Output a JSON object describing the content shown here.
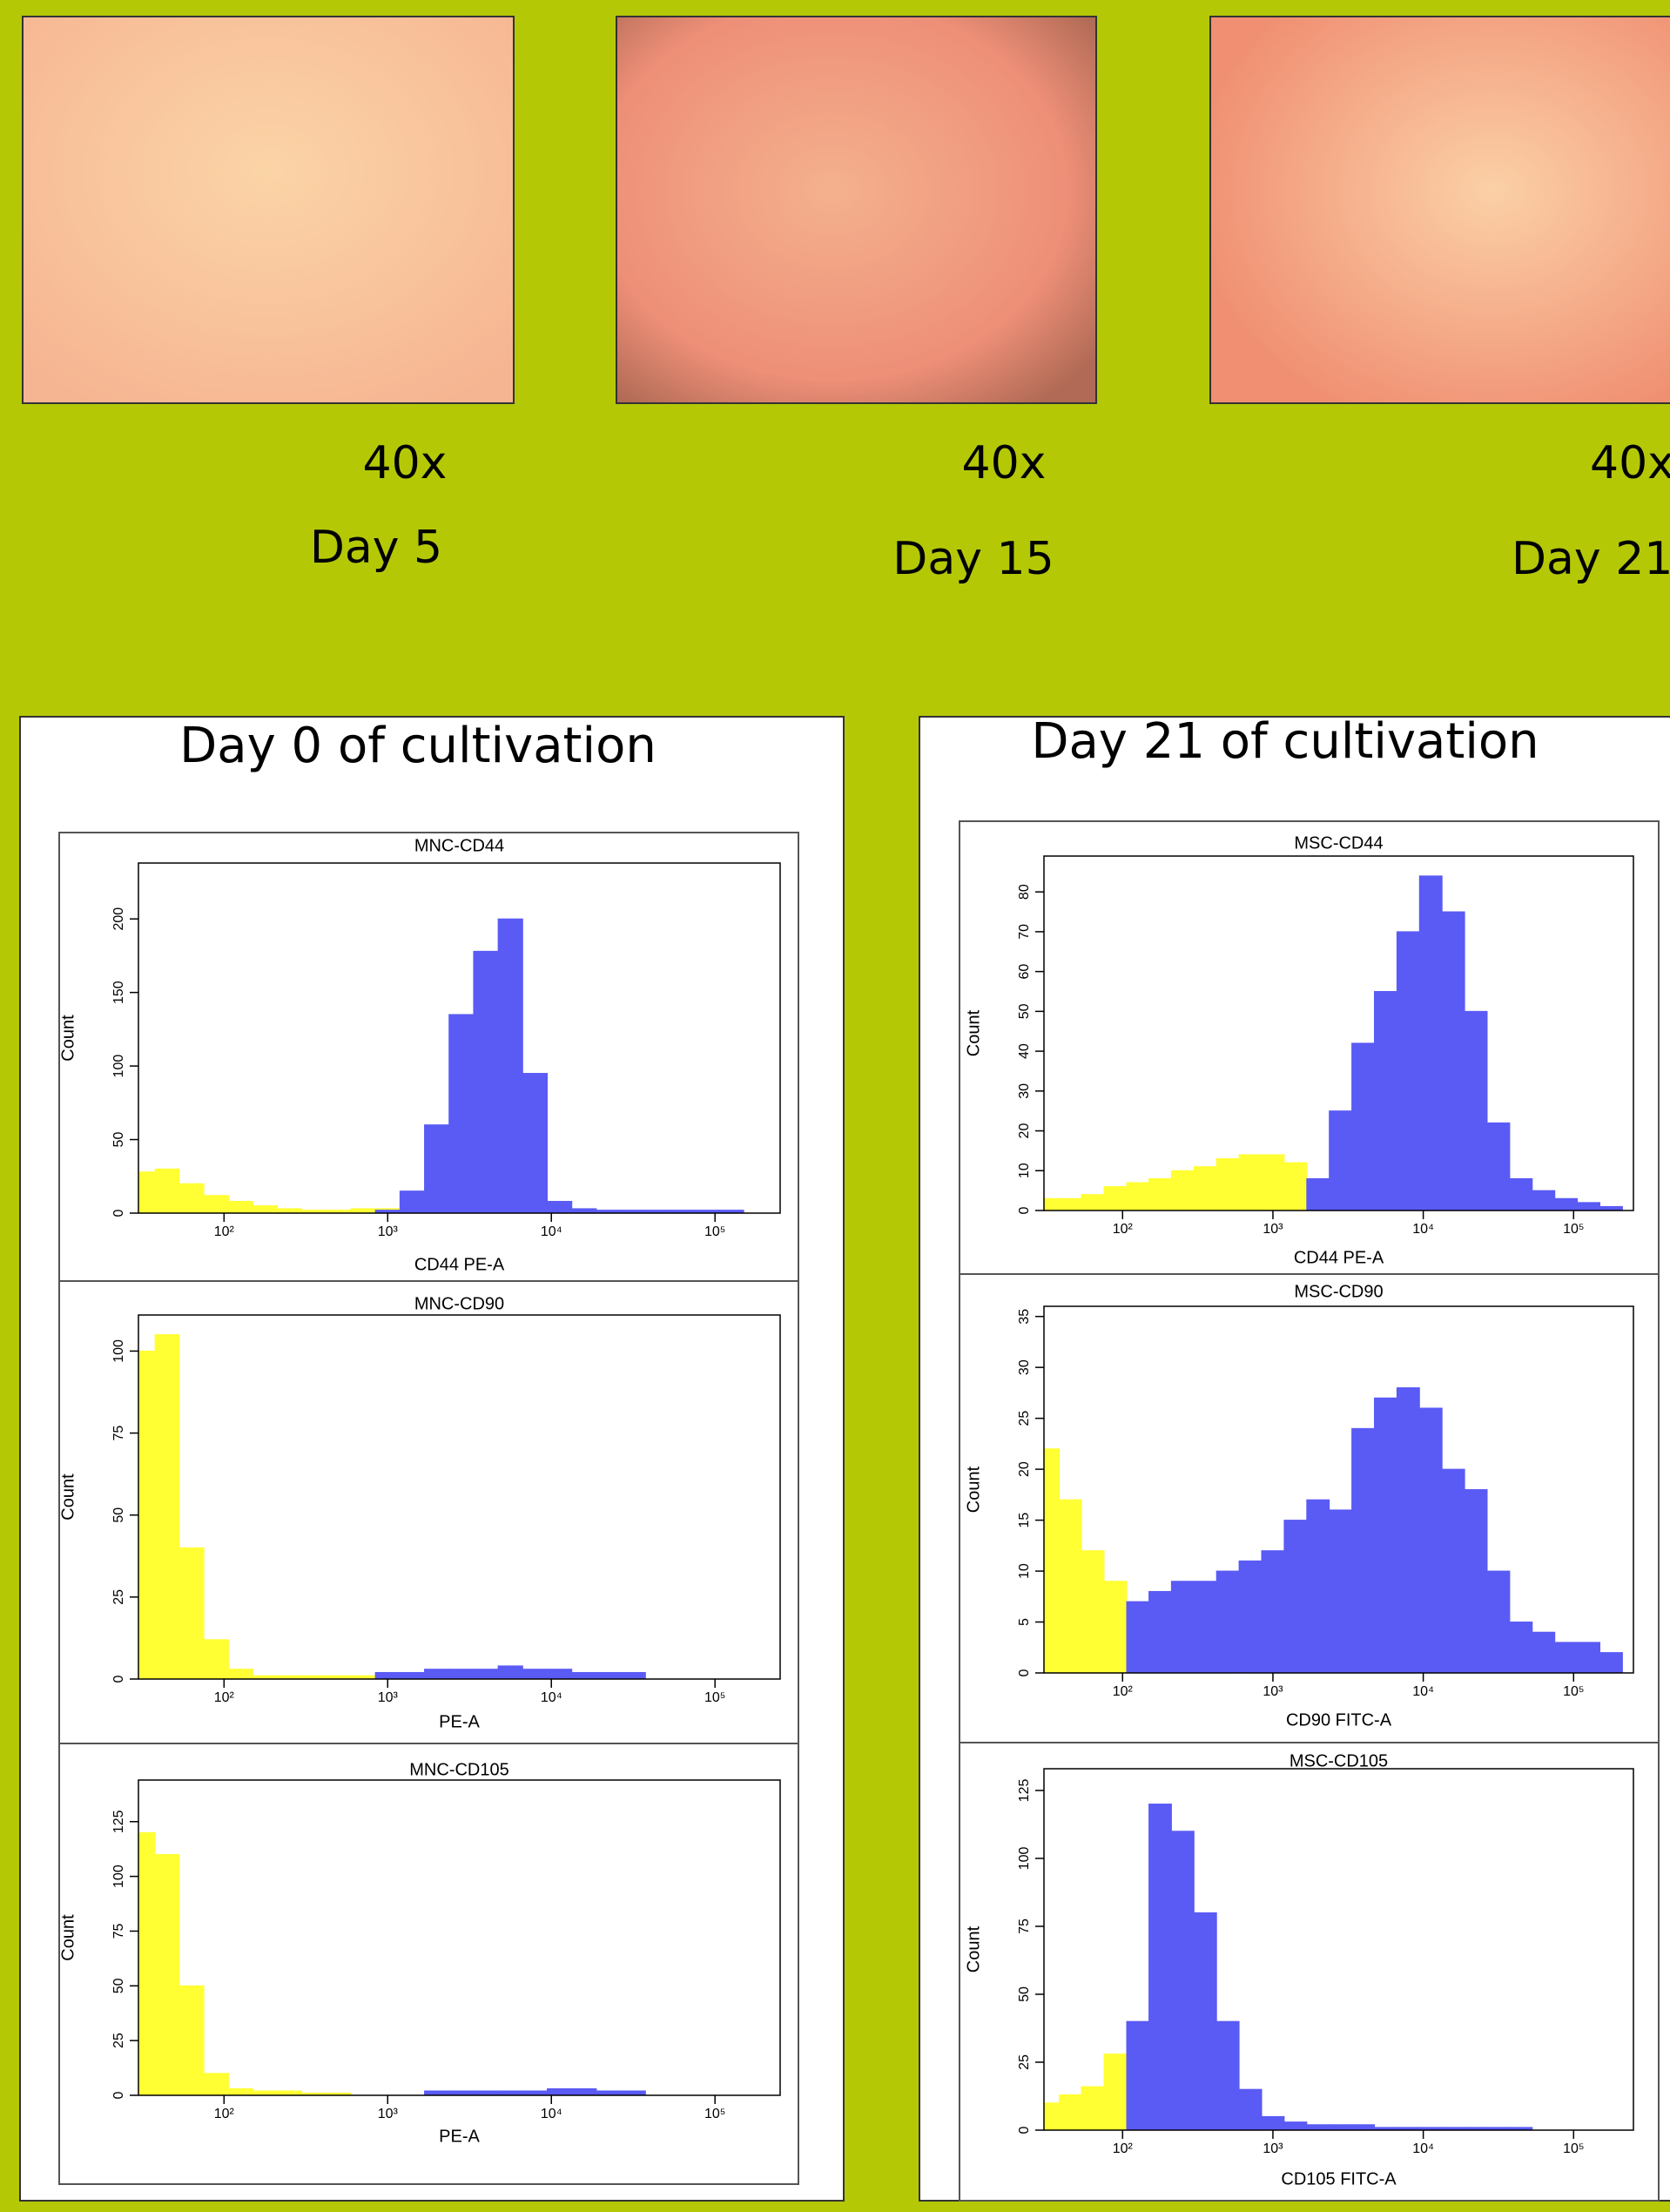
{
  "photos": [
    {
      "magnification": "40x",
      "label": "Day 5"
    },
    {
      "magnification": "40x",
      "label": "Day 15"
    },
    {
      "magnification": "40x",
      "label": "Day 21"
    }
  ],
  "panels": [
    {
      "title": "Day 0 of cultivation"
    },
    {
      "title": "Day 21 of cultivation"
    }
  ],
  "chart_data": [
    {
      "type": "area",
      "title": "MNC-CD44",
      "x_label": "CD44 PE-A",
      "y_label": "Count",
      "xscale": "log",
      "x": [
        32,
        45,
        63,
        90,
        126,
        178,
        251,
        355,
        501,
        708,
        1000,
        1413,
        1995,
        2818,
        3981,
        5623,
        7943,
        11220,
        15849,
        22387,
        31623,
        44668,
        63096,
        89125,
        125893,
        177828
      ],
      "series": [
        {
          "color": "#ffff33",
          "values": [
            28,
            30,
            20,
            12,
            8,
            5,
            3,
            2,
            2,
            3,
            3,
            null,
            null,
            null,
            null,
            null,
            null,
            null,
            null,
            null,
            null,
            null,
            null,
            null,
            null,
            null
          ]
        },
        {
          "color": "#5a5af5",
          "values": [
            null,
            null,
            null,
            null,
            null,
            null,
            null,
            null,
            null,
            null,
            2,
            15,
            60,
            135,
            178,
            200,
            95,
            8,
            3,
            2,
            2,
            2,
            2,
            2,
            2,
            null
          ]
        }
      ],
      "xlim": [
        30,
        250000
      ],
      "ylim": [
        0,
        238
      ],
      "xticks": [
        {
          "value": 100,
          "label": "10²"
        },
        {
          "value": 1000,
          "label": "10³"
        },
        {
          "value": 10000,
          "label": "10⁴"
        },
        {
          "value": 100000,
          "label": "10⁵"
        }
      ],
      "yticks": [
        0,
        50,
        100,
        150,
        200
      ]
    },
    {
      "type": "area",
      "title": "MNC-CD90",
      "x_label": "PE-A",
      "y_label": "Count",
      "xscale": "log",
      "x": [
        32,
        45,
        63,
        90,
        126,
        178,
        251,
        355,
        501,
        708,
        1000,
        1413,
        1995,
        2818,
        3981,
        5623,
        7943,
        11220,
        15849,
        22387,
        31623,
        44668,
        63096,
        89125,
        125893,
        177828
      ],
      "series": [
        {
          "color": "#ffff33",
          "values": [
            100,
            105,
            40,
            12,
            3,
            1,
            1,
            1,
            1,
            1,
            null,
            null,
            null,
            null,
            null,
            null,
            null,
            null,
            null,
            null,
            null,
            null,
            null,
            null,
            null,
            null
          ]
        },
        {
          "color": "#5a5af5",
          "values": [
            null,
            null,
            null,
            null,
            null,
            null,
            null,
            null,
            null,
            null,
            2,
            2,
            3,
            3,
            3,
            4,
            3,
            3,
            2,
            2,
            2,
            null,
            null,
            null,
            null,
            null
          ]
        }
      ],
      "xlim": [
        30,
        250000
      ],
      "ylim": [
        0,
        111
      ],
      "xticks": [
        {
          "value": 100,
          "label": "10²"
        },
        {
          "value": 1000,
          "label": "10³"
        },
        {
          "value": 10000,
          "label": "10⁴"
        },
        {
          "value": 100000,
          "label": "10⁵"
        }
      ],
      "yticks": [
        0,
        25,
        50,
        75,
        100
      ]
    },
    {
      "type": "area",
      "title": "MNC-CD105",
      "x_label": "PE-A",
      "y_label": "Count",
      "xscale": "log",
      "x": [
        32,
        45,
        63,
        90,
        126,
        178,
        251,
        355,
        501,
        708,
        1000,
        1413,
        1995,
        2818,
        3981,
        5623,
        7943,
        11220,
        15849,
        22387,
        31623,
        44668,
        63096,
        89125,
        125893,
        177828
      ],
      "series": [
        {
          "color": "#ffff33",
          "values": [
            120,
            110,
            50,
            10,
            3,
            2,
            2,
            1,
            1,
            null,
            null,
            null,
            null,
            null,
            null,
            null,
            null,
            null,
            null,
            null,
            null,
            null,
            null,
            null,
            null,
            null
          ]
        },
        {
          "color": "#5a5af5",
          "values": [
            null,
            null,
            null,
            null,
            null,
            null,
            null,
            null,
            null,
            null,
            null,
            null,
            2,
            2,
            2,
            2,
            2,
            3,
            3,
            2,
            2,
            null,
            null,
            null,
            null,
            null
          ]
        }
      ],
      "xlim": [
        30,
        250000
      ],
      "ylim": [
        0,
        144
      ],
      "xticks": [
        {
          "value": 100,
          "label": "10²"
        },
        {
          "value": 1000,
          "label": "10³"
        },
        {
          "value": 10000,
          "label": "10⁴"
        },
        {
          "value": 100000,
          "label": "10⁵"
        }
      ],
      "yticks": [
        0,
        25,
        50,
        75,
        100,
        125
      ]
    },
    {
      "type": "area",
      "title": "MSC-CD44",
      "x_label": "CD44 PE-A",
      "y_label": "Count",
      "xscale": "log",
      "x": [
        32,
        45,
        63,
        90,
        126,
        178,
        251,
        355,
        501,
        708,
        1000,
        1413,
        1995,
        2818,
        3981,
        5623,
        7943,
        11220,
        15849,
        22387,
        31623,
        44668,
        63096,
        89125,
        125893,
        177828
      ],
      "series": [
        {
          "color": "#ffff33",
          "values": [
            3,
            3,
            4,
            6,
            7,
            8,
            10,
            11,
            13,
            14,
            14,
            12,
            null,
            null,
            null,
            null,
            null,
            null,
            null,
            null,
            null,
            null,
            null,
            null,
            null,
            null
          ]
        },
        {
          "color": "#5a5af5",
          "values": [
            null,
            null,
            null,
            null,
            null,
            null,
            null,
            null,
            null,
            null,
            null,
            null,
            8,
            25,
            42,
            55,
            70,
            84,
            75,
            50,
            22,
            8,
            5,
            3,
            2,
            1
          ]
        }
      ],
      "xlim": [
        30,
        250000
      ],
      "ylim": [
        0,
        89
      ],
      "xticks": [
        {
          "value": 100,
          "label": "10²"
        },
        {
          "value": 1000,
          "label": "10³"
        },
        {
          "value": 10000,
          "label": "10⁴"
        },
        {
          "value": 100000,
          "label": "10⁵"
        }
      ],
      "yticks": [
        0,
        10,
        20,
        30,
        40,
        50,
        60,
        70,
        80
      ]
    },
    {
      "type": "area",
      "title": "MSC-CD90",
      "x_label": "CD90 FITC-A",
      "y_label": "Count",
      "xscale": "log",
      "x": [
        32,
        45,
        63,
        90,
        126,
        178,
        251,
        355,
        501,
        708,
        1000,
        1413,
        1995,
        2818,
        3981,
        5623,
        7943,
        11220,
        15849,
        22387,
        31623,
        44668,
        63096,
        89125,
        125893,
        177828
      ],
      "series": [
        {
          "color": "#ffff33",
          "values": [
            22,
            17,
            12,
            9,
            null,
            null,
            null,
            null,
            null,
            null,
            null,
            null,
            null,
            null,
            null,
            null,
            null,
            null,
            null,
            null,
            null,
            null,
            null,
            null,
            null,
            null
          ]
        },
        {
          "color": "#5a5af5",
          "values": [
            null,
            null,
            null,
            null,
            7,
            8,
            9,
            9,
            10,
            11,
            12,
            15,
            17,
            16,
            24,
            27,
            28,
            26,
            20,
            18,
            10,
            5,
            4,
            3,
            3,
            2
          ]
        }
      ],
      "xlim": [
        30,
        250000
      ],
      "ylim": [
        0,
        36
      ],
      "xticks": [
        {
          "value": 100,
          "label": "10²"
        },
        {
          "value": 1000,
          "label": "10³"
        },
        {
          "value": 10000,
          "label": "10⁴"
        },
        {
          "value": 100000,
          "label": "10⁵"
        }
      ],
      "yticks": [
        0,
        5,
        10,
        15,
        20,
        25,
        30,
        35
      ]
    },
    {
      "type": "area",
      "title": "MSC-CD105",
      "x_label": "CD105 FITC-A",
      "y_label": "Count",
      "xscale": "log",
      "x": [
        32,
        45,
        63,
        90,
        126,
        178,
        251,
        355,
        501,
        708,
        1000,
        1413,
        1995,
        2818,
        3981,
        5623,
        7943,
        11220,
        15849,
        22387,
        31623,
        44668,
        63096,
        89125,
        125893,
        177828
      ],
      "series": [
        {
          "color": "#ffff33",
          "values": [
            10,
            13,
            16,
            28,
            null,
            null,
            null,
            null,
            null,
            null,
            null,
            null,
            null,
            null,
            null,
            null,
            null,
            null,
            null,
            null,
            null,
            null,
            null,
            null,
            null,
            null
          ]
        },
        {
          "color": "#5a5af5",
          "values": [
            null,
            null,
            null,
            null,
            40,
            120,
            110,
            80,
            40,
            15,
            5,
            3,
            2,
            2,
            2,
            1,
            1,
            1,
            1,
            1,
            1,
            1,
            null,
            null,
            null,
            null
          ]
        }
      ],
      "xlim": [
        30,
        250000
      ],
      "ylim": [
        0,
        133
      ],
      "xticks": [
        {
          "value": 100,
          "label": "10²"
        },
        {
          "value": 1000,
          "label": "10³"
        },
        {
          "value": 10000,
          "label": "10⁴"
        },
        {
          "value": 100000,
          "label": "10⁵"
        }
      ],
      "yticks": [
        0,
        25,
        50,
        75,
        100,
        125
      ]
    }
  ]
}
